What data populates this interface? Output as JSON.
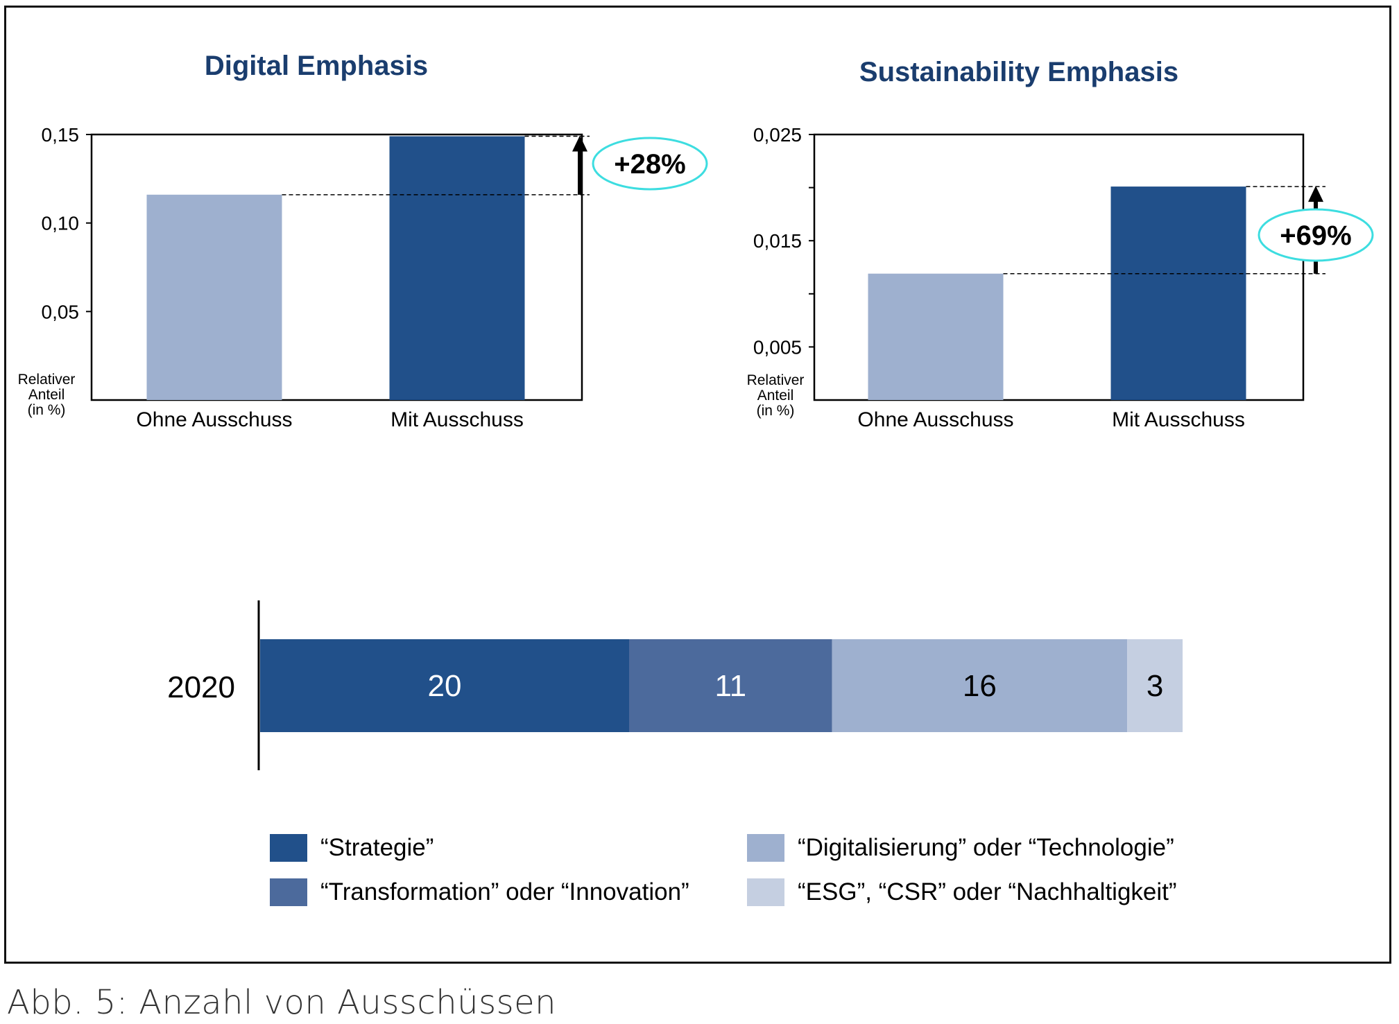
{
  "caption": "Abb. 5: Anzahl von Ausschüssen",
  "colors": {
    "strategie": "#21508a",
    "transformation": "#4c6a9c",
    "digital": "#9eb0cf",
    "esg": "#c5cfe1",
    "title": "#1a3d6e",
    "highlight": "#3ddde0"
  },
  "chart_data": [
    {
      "type": "bar",
      "title": "Digital Emphasis",
      "categories": [
        "Ohne Ausschuss",
        "Mit Ausschuss"
      ],
      "values": [
        0.116,
        0.149
      ],
      "ylabel": "Relativer Anteil (in %)",
      "ylabel_lines": [
        "Relativer",
        "Anteil",
        "(in %)"
      ],
      "ylim": [
        0,
        0.15
      ],
      "yticks": [
        0.05,
        0.1,
        0.15
      ],
      "ytick_labels": [
        "0,05",
        "0,10",
        "0,15"
      ],
      "annotation": "+28%",
      "grid": false
    },
    {
      "type": "bar",
      "title": "Sustainability Emphasis",
      "categories": [
        "Ohne Ausschuss",
        "Mit Ausschuss"
      ],
      "values": [
        0.0119,
        0.0201
      ],
      "ylabel": "Relativer Anteil (in %)",
      "ylabel_lines": [
        "Relativer",
        "Anteil",
        "(in %)"
      ],
      "ylim": [
        0,
        0.025
      ],
      "yticks": [
        0.005,
        0.015,
        0.025
      ],
      "ytick_labels": [
        "0,005",
        "0,015",
        "0,025"
      ],
      "minor_yticks": [
        0.01,
        0.02
      ],
      "annotation": "+69%",
      "grid": false
    },
    {
      "type": "bar",
      "orientation": "horizontal-stacked",
      "categories": [
        "2020"
      ],
      "series": [
        {
          "name": "“Strategie”",
          "values": [
            20
          ]
        },
        {
          "name": "“Transformation” oder “Innovation”",
          "values": [
            11
          ]
        },
        {
          "name": "“Digitalisierung” oder “Technologie”",
          "values": [
            16
          ]
        },
        {
          "name": "“ESG”, “CSR” oder “Nachhaltigkeit”",
          "values": [
            3
          ]
        }
      ],
      "legend_position": "bottom"
    }
  ]
}
